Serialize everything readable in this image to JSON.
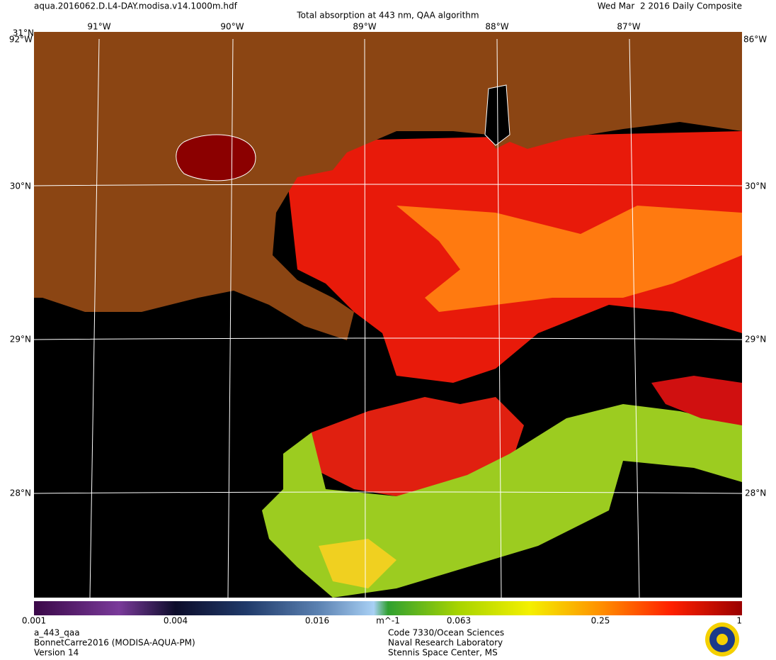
{
  "header": {
    "file": "aqua.2016062.D.L4-DAY.modisa.v14.1000m.hdf",
    "title": "Total absorption at 443 nm, QAA algorithm",
    "date": "Wed Mar  2 2016 Daily Composite"
  },
  "map": {
    "lon_labels": [
      "91°W",
      "90°W",
      "89°W",
      "88°W",
      "87°W"
    ],
    "lat_labels": [
      "30°N",
      "29°N",
      "28°N"
    ],
    "corner_labels": {
      "top_lat": "31°N",
      "left_lon": "92°W",
      "right_lon": "86°W"
    }
  },
  "colorbar": {
    "labels": [
      "0.001",
      "0.004",
      "0.016",
      "0.063",
      "0.25",
      "1"
    ],
    "unit": "m^-1"
  },
  "footer": {
    "left": [
      "a_443_qaa",
      "BonnetCarre2016 (MODISA-AQUA-PM)",
      "Version 14"
    ],
    "center": [
      "Code 7330/Ocean Sciences",
      "Naval Research Laboratory",
      "Stennis Space Center, MS"
    ]
  }
}
